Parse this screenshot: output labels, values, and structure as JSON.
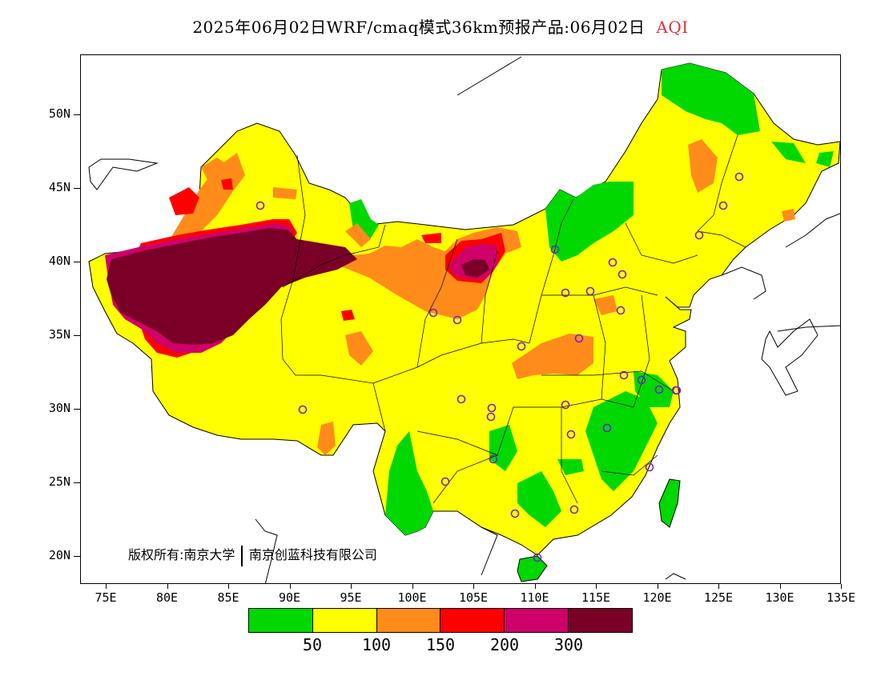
{
  "title": {
    "text": "2025年06月02日WRF/cmaq模式36km预报产品:06月02日",
    "product": "AQI",
    "product_color": "#e0303a"
  },
  "axes": {
    "y_ticks": [
      "50N",
      "45N",
      "40N",
      "35N",
      "30N",
      "25N",
      "20N"
    ],
    "x_ticks": [
      "75E",
      "80E",
      "85E",
      "90E",
      "95E",
      "100E",
      "105E",
      "110E",
      "115E",
      "120E",
      "125E",
      "130E",
      "135E"
    ]
  },
  "map": {
    "variable": "AQI",
    "region": "China",
    "lon_range": [
      73,
      135
    ],
    "lat_range": [
      18,
      54
    ],
    "station_marker": "purple-circle",
    "station_marker_color": "#7a1fd0"
  },
  "copyright": {
    "left": "版权所有:南京大学",
    "right": "南京创蓝科技有限公司"
  },
  "legend": {
    "colors": [
      "#00d800",
      "#ffff00",
      "#ff8c1a",
      "#ff0000",
      "#d0006a",
      "#7a0028"
    ],
    "labels": [
      "50",
      "100",
      "150",
      "200",
      "300"
    ]
  }
}
